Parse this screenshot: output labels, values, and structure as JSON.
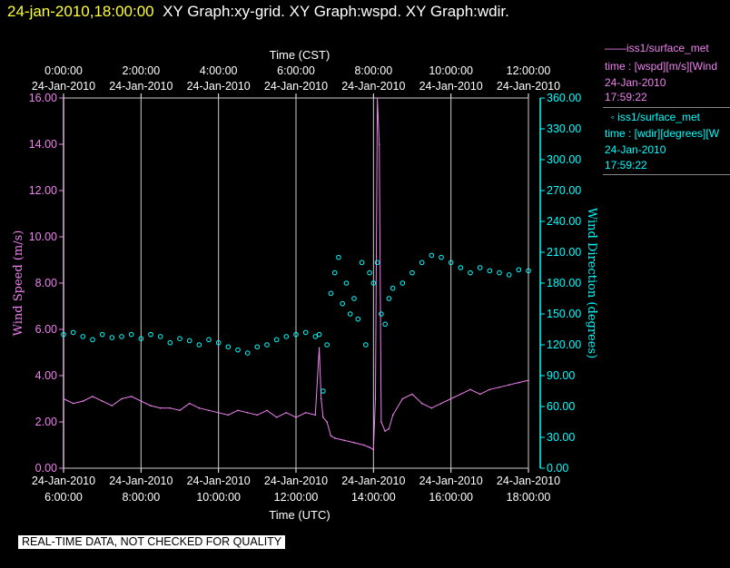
{
  "header": {
    "timestamp": "24-jan-2010,18:00:00",
    "graphs": "XY Graph:xy-grid.  XY Graph:wspd.  XY Graph:wdir."
  },
  "colors": {
    "wspd": "#ee82ee",
    "wdir": "#00ffff",
    "grid": "#cccccc",
    "timestamp": "#ffff33",
    "bg": "#000000"
  },
  "legend": {
    "wspd": {
      "title": "iss1/surface_met",
      "var": "time : [wspd][m/s][Wind",
      "date": "24-Jan-2010",
      "time": "17:59:22",
      "symbol": "line"
    },
    "wdir": {
      "title": "iss1/surface_met",
      "var": "time : [wdir][degrees][W",
      "date": "24-Jan-2010",
      "time": "17:59:22",
      "symbol": "circle"
    }
  },
  "qc_banner": "REAL-TIME DATA, NOT CHECKED FOR QUALITY",
  "chart_data": {
    "type": "line",
    "title_top": "Time (CST)",
    "xlabel": "Time (UTC)",
    "ylabel_left": "Wind Speed (m/s)",
    "ylabel_right": "Wind Direction (degrees)",
    "x_unit": "hours UTC, 24-Jan-2010",
    "xlim": [
      6,
      18
    ],
    "ylim_left": [
      0,
      16
    ],
    "ylim_right": [
      0,
      360
    ],
    "grid": "vertical",
    "bottom_ticks": [
      {
        "x": 6,
        "date": "24-Jan-2010",
        "time": "6:00:00"
      },
      {
        "x": 8,
        "date": "24-Jan-2010",
        "time": "8:00:00"
      },
      {
        "x": 10,
        "date": "24-Jan-2010",
        "time": "10:00:00"
      },
      {
        "x": 12,
        "date": "24-Jan-2010",
        "time": "12:00:00"
      },
      {
        "x": 14,
        "date": "24-Jan-2010",
        "time": "14:00:00"
      },
      {
        "x": 16,
        "date": "24-Jan-2010",
        "time": "16:00:00"
      },
      {
        "x": 18,
        "date": "24-Jan-2010",
        "time": "18:00:00"
      }
    ],
    "top_ticks": [
      {
        "x": 6,
        "time": "0:00:00",
        "date": "24-Jan-2010"
      },
      {
        "x": 8,
        "time": "2:00:00",
        "date": "24-Jan-2010"
      },
      {
        "x": 10,
        "time": "4:00:00",
        "date": "24-Jan-2010"
      },
      {
        "x": 12,
        "time": "6:00:00",
        "date": "24-Jan-2010"
      },
      {
        "x": 14,
        "time": "8:00:00",
        "date": "24-Jan-2010"
      },
      {
        "x": 16,
        "time": "10:00:00",
        "date": "24-Jan-2010"
      },
      {
        "x": 18,
        "time": "12:00:00",
        "date": "24-Jan-2010"
      }
    ],
    "left_ticks": [
      "0.00",
      "2.00",
      "4.00",
      "6.00",
      "8.00",
      "10.00",
      "12.00",
      "14.00",
      "16.00"
    ],
    "right_ticks": [
      "0.00",
      "30.00",
      "60.00",
      "90.00",
      "120.00",
      "150.00",
      "180.00",
      "210.00",
      "240.00",
      "270.00",
      "300.00",
      "330.00",
      "360.00"
    ],
    "series": [
      {
        "name": "iss1/surface_met wspd",
        "axis": "left",
        "style": "line",
        "x": [
          6.0,
          6.25,
          6.5,
          6.75,
          7.0,
          7.25,
          7.5,
          7.75,
          8.0,
          8.25,
          8.5,
          8.75,
          9.0,
          9.25,
          9.5,
          9.75,
          10.0,
          10.25,
          10.5,
          10.75,
          11.0,
          11.25,
          11.5,
          11.75,
          12.0,
          12.25,
          12.5,
          12.6,
          12.65,
          12.7,
          12.8,
          12.9,
          13.0,
          13.25,
          13.5,
          13.75,
          13.9,
          14.0,
          14.05,
          14.1,
          14.15,
          14.2,
          14.3,
          14.4,
          14.5,
          14.75,
          15.0,
          15.25,
          15.5,
          15.75,
          16.0,
          16.25,
          16.5,
          16.75,
          17.0,
          17.25,
          17.5,
          17.75,
          18.0
        ],
        "y": [
          3.0,
          2.8,
          2.9,
          3.1,
          2.9,
          2.7,
          3.0,
          3.1,
          2.9,
          2.7,
          2.6,
          2.6,
          2.5,
          2.8,
          2.6,
          2.5,
          2.4,
          2.3,
          2.5,
          2.4,
          2.3,
          2.5,
          2.2,
          2.4,
          2.2,
          2.4,
          2.3,
          5.2,
          3.0,
          2.2,
          2.0,
          1.4,
          1.3,
          1.2,
          1.1,
          1.0,
          0.9,
          0.8,
          3.0,
          16.0,
          14.0,
          2.0,
          1.6,
          1.7,
          2.3,
          3.0,
          3.2,
          2.8,
          2.6,
          2.8,
          3.0,
          3.2,
          3.4,
          3.2,
          3.4,
          3.5,
          3.6,
          3.7,
          3.8
        ]
      },
      {
        "name": "iss1/surface_met wdir",
        "axis": "right",
        "style": "markers",
        "x": [
          6.0,
          6.25,
          6.5,
          6.75,
          7.0,
          7.25,
          7.5,
          7.75,
          8.0,
          8.25,
          8.5,
          8.75,
          9.0,
          9.25,
          9.5,
          9.75,
          10.0,
          10.25,
          10.5,
          10.75,
          11.0,
          11.25,
          11.5,
          11.75,
          12.0,
          12.25,
          12.5,
          12.6,
          12.7,
          12.8,
          12.9,
          13.0,
          13.1,
          13.2,
          13.3,
          13.4,
          13.5,
          13.6,
          13.7,
          13.8,
          13.9,
          14.0,
          14.1,
          14.2,
          14.3,
          14.4,
          14.5,
          14.75,
          15.0,
          15.25,
          15.5,
          15.75,
          16.0,
          16.25,
          16.5,
          16.75,
          17.0,
          17.25,
          17.5,
          17.75,
          18.0
        ],
        "y": [
          130,
          132,
          128,
          125,
          130,
          127,
          128,
          130,
          126,
          130,
          128,
          122,
          126,
          124,
          120,
          125,
          122,
          118,
          115,
          112,
          118,
          120,
          125,
          128,
          130,
          132,
          128,
          130,
          75,
          120,
          170,
          190,
          205,
          160,
          180,
          150,
          165,
          145,
          200,
          120,
          190,
          180,
          200,
          150,
          140,
          165,
          175,
          180,
          190,
          200,
          207,
          205,
          200,
          195,
          190,
          195,
          192,
          190,
          188,
          193,
          192
        ]
      }
    ]
  }
}
